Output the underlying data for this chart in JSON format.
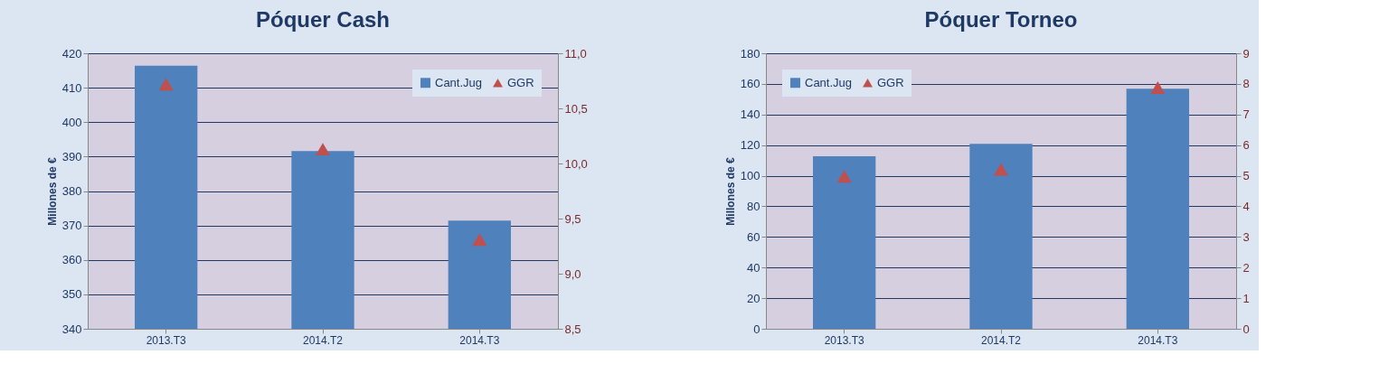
{
  "chart_data": [
    {
      "type": "bar",
      "title": "Póquer Cash",
      "ylabel": "Millones de €",
      "categories": [
        "2013.T3",
        "2014.T2",
        "2014.T3"
      ],
      "series": [
        {
          "name": "Cant.Jug",
          "color": "#4f81bd",
          "values": [
            416.4,
            391.6,
            371.4
          ]
        },
        {
          "name": "GGR",
          "type": "scatter",
          "axis": "y2",
          "marker": "triangle",
          "color": "#c0504d",
          "values": [
            10.72,
            10.13,
            9.31
          ]
        }
      ],
      "ylim": [
        340,
        420
      ],
      "yticks": [
        340,
        350,
        360,
        370,
        380,
        390,
        400,
        410,
        420
      ],
      "y2lim": [
        8.5,
        11
      ],
      "y2ticks": [
        {
          "value": 8.5,
          "label": "8,5"
        },
        {
          "value": 9,
          "label": "9,0"
        },
        {
          "value": 9.5,
          "label": "9,5"
        },
        {
          "value": 10,
          "label": "10,0"
        },
        {
          "value": 10.5,
          "label": "10,5"
        },
        {
          "value": 11,
          "label": "11,0"
        }
      ],
      "grid": "y",
      "legend": "top right"
    },
    {
      "type": "bar",
      "title": "Póquer Torneo",
      "ylabel": "Millones de €",
      "categories": [
        "2013.T3",
        "2014.T2",
        "2014.T3"
      ],
      "series": [
        {
          "name": "Cant.Jug",
          "color": "#4f81bd",
          "values": [
            112.7,
            120.8,
            156.8
          ]
        },
        {
          "name": "GGR",
          "type": "scatter",
          "axis": "y2",
          "marker": "triangle",
          "color": "#c0504d",
          "values": [
            4.98,
            5.21,
            7.88
          ]
        }
      ],
      "ylim": [
        0,
        180
      ],
      "yticks": [
        0,
        20,
        40,
        60,
        80,
        100,
        120,
        140,
        160,
        180
      ],
      "y2lim": [
        0,
        9
      ],
      "y2ticks": [
        0,
        1,
        2,
        3,
        4,
        5,
        6,
        7,
        8,
        9
      ],
      "grid": "y",
      "legend": "top left"
    }
  ]
}
